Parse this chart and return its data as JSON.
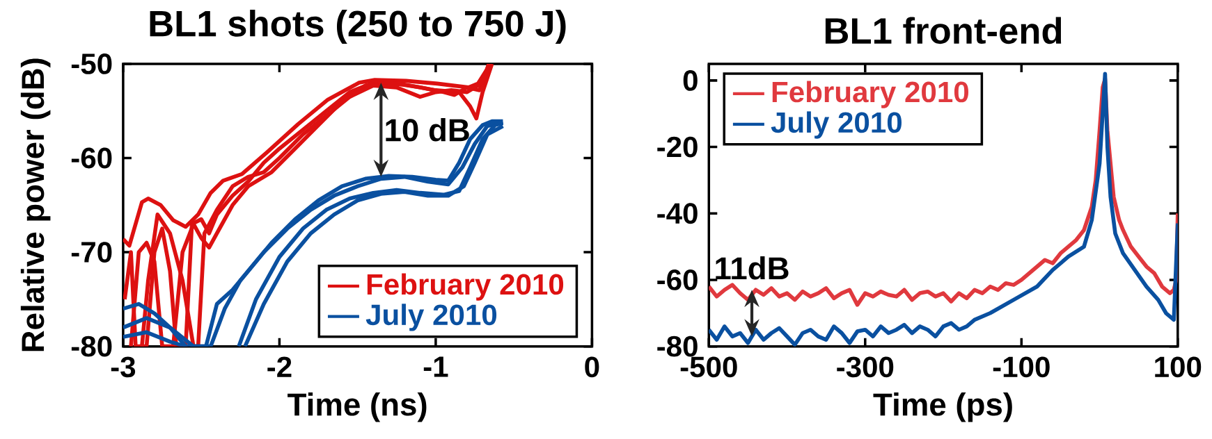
{
  "chart_data": [
    {
      "type": "line",
      "title": "BL1 shots (250 to 750 J)",
      "xlabel": "Time (ns)",
      "ylabel": "Relative power (dB)",
      "xlim": [
        -3,
        0
      ],
      "ylim": [
        -80,
        -50
      ],
      "xticks": [
        -3,
        -2,
        -1,
        0
      ],
      "yticks": [
        -80,
        -70,
        -60,
        -50
      ],
      "legend": "bottom right",
      "grid": false,
      "annotations": [
        {
          "text": "10 dB",
          "x": -1.35,
          "y": -52
        }
      ],
      "series": [
        {
          "name": "February 2010",
          "color": "#dd1111",
          "x": [
            -3.0,
            -2.96,
            -2.88,
            -2.84,
            -2.76,
            -2.68,
            -2.6,
            -2.52,
            -2.44,
            -2.36,
            -2.24,
            -2.08,
            -1.88,
            -1.69,
            -1.49,
            -1.39,
            -1.19,
            -0.99,
            -0.89,
            -0.79,
            -0.73,
            -0.65
          ],
          "values": [
            -68.6,
            -69.3,
            -64.7,
            -64.3,
            -65.0,
            -66.6,
            -67.3,
            -66.0,
            -63.7,
            -62.4,
            -61.7,
            -59.4,
            -56.4,
            -53.8,
            -52.0,
            -51.7,
            -51.8,
            -52.1,
            -52.3,
            -52.5,
            -52.1,
            -50.0
          ]
        },
        {
          "color": "#dd1111",
          "x": [
            -2.99,
            -2.95,
            -2.92,
            -2.85,
            -2.8,
            -2.75,
            -2.7,
            -2.66,
            -2.6,
            -2.56,
            -2.5,
            -2.45,
            -2.4,
            -2.3,
            -2.2,
            -2.1,
            -2.0,
            -1.85,
            -1.7,
            -1.55,
            -1.4,
            -1.2,
            -1.0,
            -0.85,
            -0.78,
            -0.74,
            -0.7,
            -0.64
          ],
          "values": [
            -75,
            -70,
            -80,
            -80,
            -70,
            -67.5,
            -72,
            -80,
            -80,
            -67,
            -66.5,
            -68,
            -66,
            -64,
            -62.5,
            -60.5,
            -59,
            -57,
            -55,
            -53,
            -52,
            -52.2,
            -52.8,
            -53,
            -54.5,
            -55.8,
            -53,
            -50
          ]
        },
        {
          "color": "#dd1111",
          "x": [
            -2.95,
            -2.9,
            -2.85,
            -2.8,
            -2.75,
            -2.68,
            -2.62,
            -2.55,
            -2.5,
            -2.45,
            -2.4,
            -2.3,
            -2.2,
            -2.05,
            -1.9,
            -1.75,
            -1.6,
            -1.45,
            -1.3,
            -1.1,
            -0.95,
            -0.88,
            -0.8,
            -0.72,
            -0.66
          ],
          "values": [
            -80,
            -70,
            -69,
            -71,
            -80,
            -80,
            -70,
            -67,
            -68.5,
            -69.5,
            -68,
            -65,
            -63,
            -61.5,
            -59,
            -56.5,
            -54,
            -52.3,
            -52,
            -52.5,
            -53,
            -53.3,
            -52.5,
            -52.8,
            -50
          ]
        },
        {
          "color": "#dd1111",
          "x": [
            -2.88,
            -2.84,
            -2.78,
            -2.7,
            -2.62,
            -2.55,
            -2.52,
            -2.48,
            -2.4,
            -2.3,
            -2.2,
            -2.1,
            -2.0,
            -1.85,
            -1.7,
            -1.55,
            -1.4,
            -1.25,
            -1.1,
            -1.0,
            -0.9,
            -0.8,
            -0.7,
            -0.66
          ],
          "values": [
            -80,
            -73,
            -66,
            -68,
            -73,
            -80,
            -80,
            -68,
            -65.5,
            -63,
            -62,
            -61.5,
            -60,
            -57.5,
            -55.5,
            -53.5,
            -52.3,
            -52.5,
            -53.5,
            -53,
            -52.8,
            -53,
            -52,
            -50
          ]
        },
        {
          "name": "July 2010",
          "color": "#0a50a0",
          "x": [
            -3.0,
            -2.85,
            -2.7,
            -2.55,
            -2.47,
            -2.4,
            -2.3,
            -2.2,
            -2.05,
            -1.9,
            -1.75,
            -1.6,
            -1.45,
            -1.3,
            -1.15,
            -1.0,
            -0.92,
            -0.85,
            -0.78,
            -0.7,
            -0.64,
            -0.57
          ],
          "values": [
            -78,
            -77,
            -78,
            -80,
            -80,
            -75.5,
            -74,
            -72,
            -69,
            -66.5,
            -64.5,
            -63,
            -62.2,
            -61.9,
            -62,
            -62.3,
            -62.4,
            -60.5,
            -58,
            -56.5,
            -56.1,
            -56.1
          ]
        },
        {
          "color": "#0a50a0",
          "x": [
            -3.0,
            -2.85,
            -2.7,
            -2.6,
            -2.44,
            -2.35,
            -2.25,
            -2.1,
            -1.95,
            -1.8,
            -1.65,
            -1.5,
            -1.35,
            -1.2,
            -1.05,
            -0.92,
            -0.83,
            -0.75,
            -0.67,
            -0.57
          ],
          "values": [
            -79,
            -78.5,
            -79.5,
            -80,
            -80,
            -76,
            -73,
            -70,
            -67.5,
            -65.5,
            -64,
            -63,
            -62.2,
            -62,
            -62.5,
            -62.8,
            -61,
            -58.5,
            -56.6,
            -56.2
          ]
        },
        {
          "color": "#0a50a0",
          "x": [
            -2.26,
            -2.15,
            -2.0,
            -1.85,
            -1.7,
            -1.55,
            -1.4,
            -1.25,
            -1.1,
            -0.95,
            -0.85,
            -0.78,
            -0.7,
            -0.62,
            -0.57
          ],
          "values": [
            -80,
            -75,
            -70.5,
            -67.5,
            -65.5,
            -64.3,
            -63.7,
            -63.4,
            -63.7,
            -63.9,
            -63.5,
            -61,
            -58,
            -56.5,
            -56.3
          ]
        },
        {
          "color": "#0a50a0",
          "x": [
            -2.22,
            -2.1,
            -1.95,
            -1.8,
            -1.65,
            -1.5,
            -1.35,
            -1.2,
            -1.05,
            -0.92,
            -0.82,
            -0.75,
            -0.67,
            -0.57
          ],
          "values": [
            -80,
            -75.5,
            -71,
            -68,
            -66,
            -64.5,
            -63.8,
            -63.6,
            -64,
            -64,
            -63,
            -60.5,
            -57.5,
            -56.6
          ]
        },
        {
          "color": "#0a50a0",
          "x": [
            -3.0,
            -2.9,
            -2.8,
            -2.7,
            -2.6
          ],
          "values": [
            -76,
            -75.5,
            -76.5,
            -78,
            -80
          ]
        }
      ]
    },
    {
      "type": "line",
      "title": "BL1 front-end",
      "xlabel": "Time (ps)",
      "xlim": [
        -500,
        100
      ],
      "ylim": [
        -80,
        5
      ],
      "xticks": [
        -500,
        -300,
        -100,
        100
      ],
      "yticks": [
        -80,
        -60,
        -40,
        -20,
        0
      ],
      "legend": "top left",
      "grid": false,
      "annotations": [
        {
          "text": "11dB",
          "x": -445,
          "y": -63
        }
      ],
      "series": [
        {
          "name": "February 2010",
          "color": "#e0393e",
          "x": [
            -500,
            -490,
            -480,
            -470,
            -460,
            -450,
            -440,
            -430,
            -420,
            -410,
            -400,
            -390,
            -380,
            -370,
            -360,
            -350,
            -340,
            -330,
            -320,
            -310,
            -300,
            -290,
            -280,
            -270,
            -260,
            -250,
            -240,
            -230,
            -220,
            -210,
            -200,
            -190,
            -180,
            -170,
            -160,
            -150,
            -140,
            -130,
            -120,
            -110,
            -100,
            -90,
            -80,
            -70,
            -60,
            -50,
            -40,
            -30,
            -20,
            -10,
            -5,
            0,
            4,
            7,
            10,
            14,
            18,
            25,
            30,
            40,
            50,
            60,
            70,
            80,
            90,
            95,
            98,
            100
          ],
          "values": [
            -62,
            -65,
            -63,
            -61.5,
            -64,
            -66,
            -63,
            -64.5,
            -62.5,
            -65,
            -64,
            -66,
            -63.5,
            -65,
            -64,
            -62.5,
            -65.5,
            -64,
            -63,
            -67.5,
            -64,
            -65,
            -63.5,
            -64.5,
            -65,
            -63,
            -66,
            -64,
            -63.5,
            -65,
            -64,
            -66.5,
            -64,
            -65.5,
            -63,
            -64,
            -62,
            -63,
            -61,
            -61.5,
            -60,
            -58,
            -56,
            -54,
            -55,
            -52,
            -50,
            -48,
            -45,
            -38,
            -30,
            -15,
            -2,
            0.5,
            -15,
            -25,
            -35,
            -42,
            -45,
            -50,
            -53,
            -56,
            -58,
            -62,
            -64,
            -63,
            -60,
            -40
          ]
        },
        {
          "name": "July 2010",
          "color": "#0a50a0",
          "x": [
            -500,
            -490,
            -480,
            -470,
            -460,
            -450,
            -440,
            -430,
            -420,
            -410,
            -400,
            -390,
            -380,
            -370,
            -360,
            -350,
            -340,
            -330,
            -320,
            -310,
            -300,
            -290,
            -280,
            -270,
            -260,
            -250,
            -240,
            -230,
            -220,
            -210,
            -200,
            -190,
            -180,
            -170,
            -160,
            -140,
            -110,
            -80,
            -60,
            -40,
            -20,
            -10,
            0,
            7,
            10,
            14,
            20,
            30,
            45,
            60,
            75,
            85,
            95,
            100
          ],
          "values": [
            -75,
            -78,
            -74,
            -77,
            -76,
            -79,
            -75,
            -78,
            -76,
            -74.5,
            -77,
            -79.5,
            -76,
            -75,
            -77,
            -78,
            -74,
            -76,
            -79,
            -75.5,
            -75,
            -77,
            -74,
            -76,
            -75,
            -73.5,
            -76,
            -74,
            -75,
            -77,
            -74,
            -73,
            -75,
            -74,
            -72,
            -70,
            -66,
            -62,
            -57,
            -53,
            -50,
            -42,
            -25,
            2,
            -20,
            -35,
            -46,
            -52,
            -57,
            -62,
            -66,
            -70,
            -72,
            -43
          ]
        }
      ]
    }
  ]
}
